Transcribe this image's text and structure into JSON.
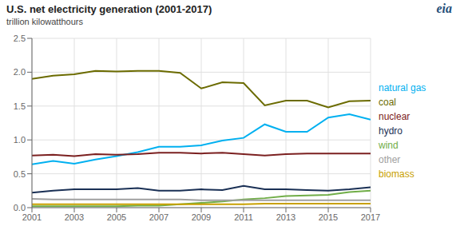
{
  "chart_data": {
    "type": "line",
    "title": "U.S. net electricity generation (2001-2017)",
    "subtitle": "trillion kilowatthours",
    "annotations": [
      {
        "text": "eia"
      }
    ],
    "x": [
      2001,
      2002,
      2003,
      2004,
      2005,
      2006,
      2007,
      2008,
      2009,
      2010,
      2011,
      2012,
      2013,
      2014,
      2015,
      2016,
      2017
    ],
    "series": [
      {
        "name": "natural gas",
        "color": "#00b0f0",
        "values": [
          0.64,
          0.69,
          0.65,
          0.71,
          0.76,
          0.82,
          0.9,
          0.9,
          0.92,
          0.99,
          1.03,
          1.23,
          1.12,
          1.12,
          1.33,
          1.38,
          1.3
        ]
      },
      {
        "name": "coal",
        "color": "#6b6b00",
        "values": [
          1.9,
          1.95,
          1.97,
          2.02,
          2.01,
          2.02,
          2.02,
          1.99,
          1.76,
          1.85,
          1.84,
          1.51,
          1.58,
          1.58,
          1.48,
          1.57,
          1.58
        ]
      },
      {
        "name": "nuclear",
        "color": "#7b2020",
        "values": [
          0.77,
          0.78,
          0.76,
          0.79,
          0.78,
          0.79,
          0.81,
          0.81,
          0.8,
          0.81,
          0.79,
          0.77,
          0.79,
          0.8,
          0.8,
          0.8,
          0.8
        ]
      },
      {
        "name": "hydro",
        "color": "#1a3055",
        "values": [
          0.22,
          0.25,
          0.27,
          0.27,
          0.27,
          0.29,
          0.25,
          0.25,
          0.27,
          0.26,
          0.32,
          0.27,
          0.27,
          0.26,
          0.25,
          0.27,
          0.3
        ]
      },
      {
        "name": "wind",
        "color": "#70ad47",
        "values": [
          0.02,
          0.02,
          0.02,
          0.02,
          0.02,
          0.03,
          0.03,
          0.05,
          0.07,
          0.09,
          0.12,
          0.14,
          0.17,
          0.18,
          0.19,
          0.23,
          0.25
        ]
      },
      {
        "name": "other",
        "color": "#a0a0a0",
        "values": [
          0.13,
          0.12,
          0.12,
          0.12,
          0.12,
          0.12,
          0.12,
          0.12,
          0.11,
          0.11,
          0.11,
          0.11,
          0.11,
          0.11,
          0.11,
          0.11,
          0.11
        ]
      },
      {
        "name": "biomass",
        "color": "#c8a000",
        "values": [
          0.05,
          0.05,
          0.05,
          0.05,
          0.05,
          0.05,
          0.05,
          0.05,
          0.05,
          0.05,
          0.05,
          0.06,
          0.06,
          0.06,
          0.06,
          0.06,
          0.06
        ]
      }
    ],
    "xlim": [
      2001,
      2017
    ],
    "xticks": [
      2001,
      2003,
      2005,
      2007,
      2009,
      2011,
      2013,
      2015,
      2017
    ],
    "ylim": [
      0,
      2.5
    ],
    "yticks": [
      {
        "value": 0,
        "label": "0.0"
      },
      0.5,
      {
        "value": 1,
        "label": "1.0"
      },
      1.5,
      {
        "value": 2,
        "label": "2.0"
      },
      2.5
    ],
    "grid": true,
    "legend": "right"
  }
}
